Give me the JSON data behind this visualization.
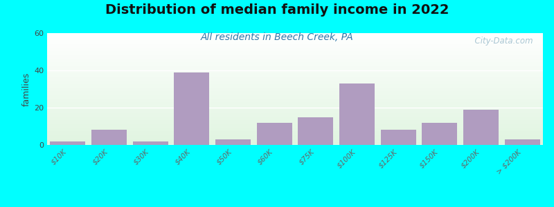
{
  "title": "Distribution of median family income in 2022",
  "subtitle": "All residents in Beech Creek, PA",
  "ylabel": "families",
  "background_outer": "#00FFFF",
  "bar_color": "#b09cc0",
  "categories": [
    "$10K",
    "$20K",
    "$30K",
    "$40K",
    "$50K",
    "$60K",
    "$75K",
    "$100K",
    "$125K",
    "$150K",
    "$200K",
    "> $200K"
  ],
  "values": [
    2,
    8,
    2,
    39,
    3,
    12,
    15,
    33,
    8,
    12,
    19,
    3
  ],
  "ylim": [
    0,
    60
  ],
  "yticks": [
    0,
    20,
    40,
    60
  ],
  "title_fontsize": 14,
  "subtitle_fontsize": 10,
  "watermark": "  City-Data.com"
}
